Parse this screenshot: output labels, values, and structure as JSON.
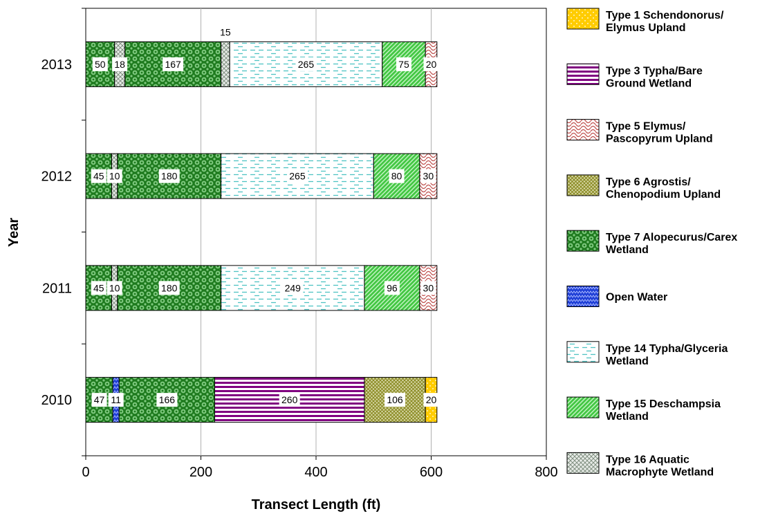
{
  "chart_data": {
    "type": "bar",
    "orientation": "horizontal",
    "stacked": true,
    "xlabel": "Transect Length (ft)",
    "ylabel": "Year",
    "xlim": [
      0,
      800
    ],
    "xticks": [
      0,
      200,
      400,
      600,
      800
    ],
    "grid": "vertical gridlines on",
    "legend_position": "right",
    "categories": [
      "2013",
      "2012",
      "2011",
      "2010"
    ],
    "legend": [
      {
        "key": "t1",
        "label_lines": [
          "Type 1 Schendonorus/",
          "Elymus Upland"
        ],
        "color": "#ffcc00",
        "pattern": "dots"
      },
      {
        "key": "t3",
        "label_lines": [
          "Type 3 Typha/Bare",
          "Ground Wetland"
        ],
        "color": "#800080",
        "pattern": "hstripes"
      },
      {
        "key": "t5",
        "label_lines": [
          "Type 5 Elymus/",
          "Pascopyrum Upland"
        ],
        "color": "#c0504d",
        "pattern": "scales"
      },
      {
        "key": "t6",
        "label_lines": [
          "Type 6 Agrostis/",
          "Chenopodium Upland"
        ],
        "color": "#a3a33a",
        "pattern": "crosshatch"
      },
      {
        "key": "t7",
        "label_lines": [
          "Type 7 Alopecurus/Carex",
          "Wetland"
        ],
        "color": "#2e8b2e",
        "pattern": "circles"
      },
      {
        "key": "ow",
        "label_lines": [
          "Open Water"
        ],
        "color": "#1f3fd6",
        "pattern": "zigzag"
      },
      {
        "key": "t14",
        "label_lines": [
          "Type 14 Typha/Glyceria",
          "Wetland"
        ],
        "color": "#4fc3c3",
        "pattern": "dashes"
      },
      {
        "key": "t15",
        "label_lines": [
          "Type 15 Deschampsia",
          "Wetland"
        ],
        "color": "#44c744",
        "pattern": "diagonal"
      },
      {
        "key": "t16",
        "label_lines": [
          "Type 16 Aquatic",
          "Macrophyte Wetland"
        ],
        "color": "#9aa79a",
        "pattern": "lattice"
      }
    ],
    "bars": [
      {
        "year": "2013",
        "segments": [
          {
            "type": "t7",
            "value": 50,
            "label": "50"
          },
          {
            "type": "t16",
            "value": 18,
            "label": "18"
          },
          {
            "type": "t7",
            "value": 167,
            "label": "167"
          },
          {
            "type": "t16",
            "value": 15,
            "label": "15",
            "label_above": true
          },
          {
            "type": "t14",
            "value": 265,
            "label": "265"
          },
          {
            "type": "t15",
            "value": 75,
            "label": "75"
          },
          {
            "type": "t5",
            "value": 20,
            "label": "20"
          }
        ]
      },
      {
        "year": "2012",
        "segments": [
          {
            "type": "t7",
            "value": 45,
            "label": "45"
          },
          {
            "type": "t16",
            "value": 10,
            "label": "10"
          },
          {
            "type": "t7",
            "value": 180,
            "label": "180"
          },
          {
            "type": "t14",
            "value": 265,
            "label": "265"
          },
          {
            "type": "t15",
            "value": 80,
            "label": "80"
          },
          {
            "type": "t5",
            "value": 30,
            "label": "30"
          }
        ]
      },
      {
        "year": "2011",
        "segments": [
          {
            "type": "t7",
            "value": 45,
            "label": "45"
          },
          {
            "type": "t16",
            "value": 10,
            "label": "10"
          },
          {
            "type": "t7",
            "value": 180,
            "label": "180"
          },
          {
            "type": "t14",
            "value": 249,
            "label": "249"
          },
          {
            "type": "t15",
            "value": 96,
            "label": "96"
          },
          {
            "type": "t5",
            "value": 30,
            "label": "30"
          }
        ]
      },
      {
        "year": "2010",
        "segments": [
          {
            "type": "t7",
            "value": 47,
            "label": "47"
          },
          {
            "type": "ow",
            "value": 11,
            "label": "11"
          },
          {
            "type": "t7",
            "value": 166,
            "label": "166"
          },
          {
            "type": "t3",
            "value": 260,
            "label": "260"
          },
          {
            "type": "t6",
            "value": 106,
            "label": "106"
          },
          {
            "type": "t1",
            "value": 20,
            "label": "20"
          }
        ]
      }
    ]
  }
}
